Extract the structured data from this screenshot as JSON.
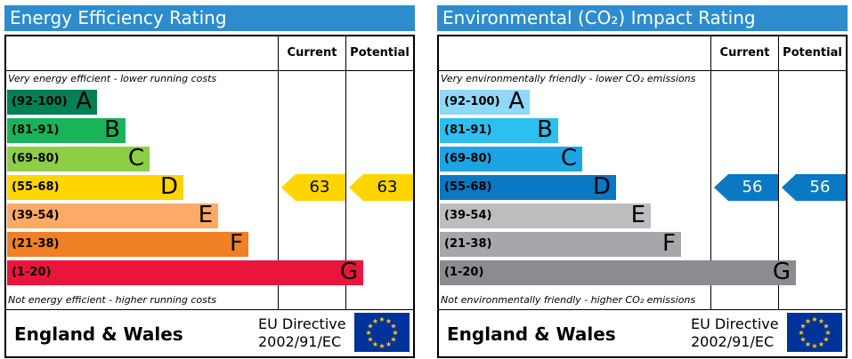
{
  "chart_data": [
    {
      "type": "table",
      "title": "Energy Efficiency Rating",
      "columns": [
        "Current",
        "Potential"
      ],
      "top_note": "Very energy efficient - lower running costs",
      "bottom_note": "Not energy efficient - higher running costs",
      "bands": [
        {
          "range": "(92-100)",
          "letter": "A",
          "color": "#008054"
        },
        {
          "range": "(81-91)",
          "letter": "B",
          "color": "#19b459"
        },
        {
          "range": "(69-80)",
          "letter": "C",
          "color": "#8dce46"
        },
        {
          "range": "(55-68)",
          "letter": "D",
          "color": "#ffd500"
        },
        {
          "range": "(39-54)",
          "letter": "E",
          "color": "#fcaa65"
        },
        {
          "range": "(21-38)",
          "letter": "F",
          "color": "#ef8023"
        },
        {
          "range": "(1-20)",
          "letter": "G",
          "color": "#e9153b"
        }
      ],
      "current": 63,
      "potential": 63,
      "arrow_color": "#ffd500",
      "arrow_text_color": "#000000",
      "footer": "England & Wales",
      "directive_line1": "EU Directive",
      "directive_line2": "2002/91/EC"
    },
    {
      "type": "table",
      "title": "Environmental (CO₂) Impact Rating",
      "columns": [
        "Current",
        "Potential"
      ],
      "top_note": "Very environmentally friendly - lower CO₂ emissions",
      "bottom_note": "Not environmentally friendly - higher CO₂ emissions",
      "bands": [
        {
          "range": "(92-100)",
          "letter": "A",
          "color": "#8ed8f8"
        },
        {
          "range": "(81-91)",
          "letter": "B",
          "color": "#2cc0f0"
        },
        {
          "range": "(69-80)",
          "letter": "C",
          "color": "#1ca5e2"
        },
        {
          "range": "(55-68)",
          "letter": "D",
          "color": "#0a78c2"
        },
        {
          "range": "(39-54)",
          "letter": "E",
          "color": "#bbbdbf"
        },
        {
          "range": "(21-38)",
          "letter": "F",
          "color": "#a5a7aa"
        },
        {
          "range": "(1-20)",
          "letter": "G",
          "color": "#8a8c8f"
        }
      ],
      "current": 56,
      "potential": 56,
      "arrow_color": "#0a78c2",
      "arrow_text_color": "#ffffff",
      "footer": "England & Wales",
      "directive_line1": "EU Directive",
      "directive_line2": "2002/91/EC"
    }
  ]
}
